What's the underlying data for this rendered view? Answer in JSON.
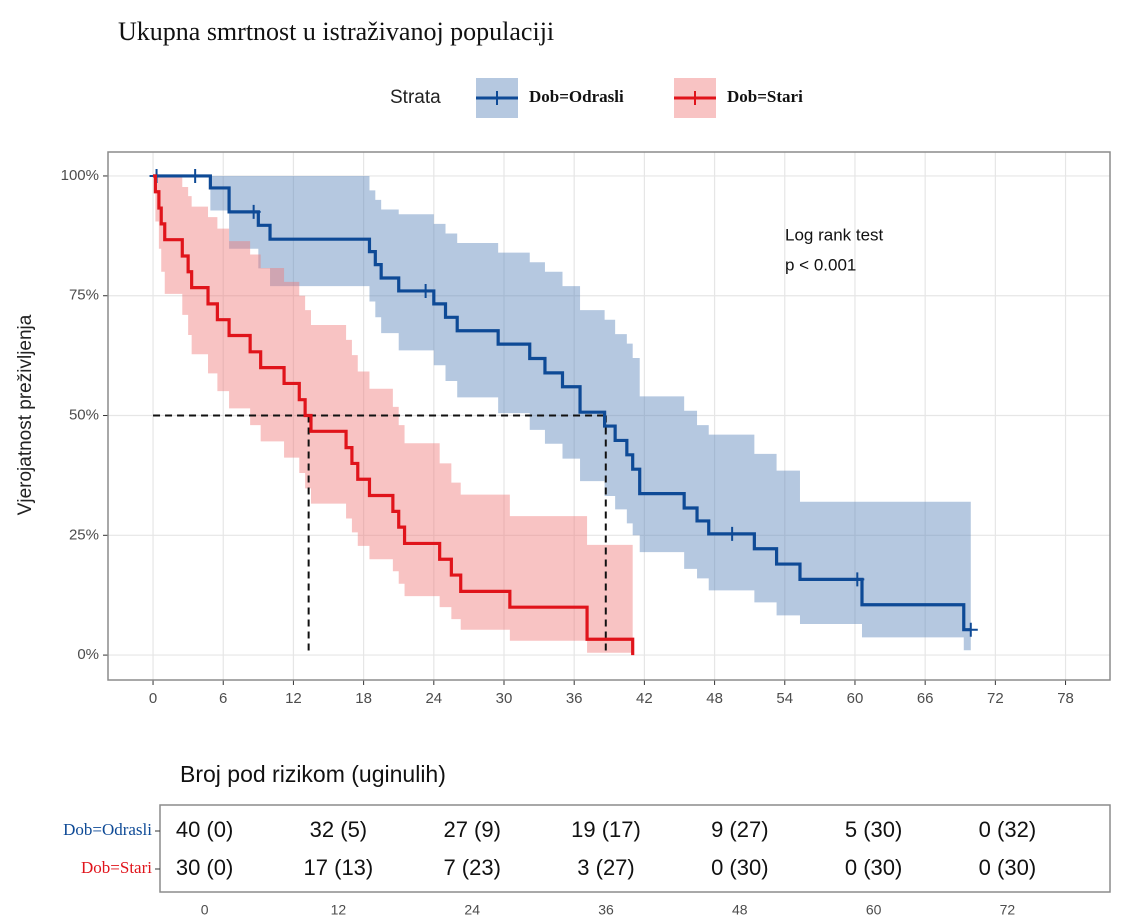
{
  "chart_data": {
    "type": "kaplan-meier",
    "title": "Ukupna smrtnost u istraživanoj populaciji",
    "y_label": "Vjerojatnost preživljenja",
    "legend_title": "Strata",
    "xlim": [
      -3.85,
      81.8
    ],
    "ylim": [
      -5.2,
      105
    ],
    "xticks": [
      0,
      6,
      12,
      18,
      24,
      30,
      36,
      42,
      48,
      54,
      60,
      66,
      72,
      78
    ],
    "yticks": [
      {
        "value": 0,
        "label": "0%"
      },
      {
        "value": 25,
        "label": "25%"
      },
      {
        "value": 50,
        "label": "50%"
      },
      {
        "value": 75,
        "label": "75%"
      },
      {
        "value": 100,
        "label": "100%"
      }
    ],
    "grid": true,
    "annotation": [
      "Log rank test",
      "p < 0.001"
    ],
    "median_lines": {
      "y": 50,
      "x": [
        13.3,
        38.7
      ]
    },
    "series": [
      {
        "name": "Dob=Odrasli",
        "color": "#0e4a96",
        "band_color": "#5c86ba",
        "x": [
          0,
          4.9,
          6.5,
          9,
          10,
          18.5,
          19,
          19.5,
          21,
          24,
          25,
          26,
          29.5,
          32.2,
          33.5,
          35,
          36.5,
          38.6,
          39.5,
          40.5,
          41,
          41.6,
          45.4,
          46.5,
          47.5,
          51.4,
          53.3,
          55.3,
          60.6,
          69.3,
          69.9
        ],
        "values": [
          100,
          97.5,
          92.5,
          89.7,
          86.8,
          84.2,
          81.5,
          78.7,
          76,
          73.3,
          70.5,
          67.7,
          64.9,
          61.9,
          58.9,
          56,
          50.7,
          47.8,
          44.8,
          41.8,
          38.8,
          33.7,
          30.7,
          28,
          25.3,
          22.2,
          19,
          15.8,
          10.5,
          5.3,
          5.3
        ],
        "lower": [
          100,
          92.8,
          84.8,
          80.7,
          77,
          73.8,
          70.5,
          67.2,
          63.6,
          60.5,
          57.2,
          53.8,
          50.5,
          47,
          44.1,
          41,
          36.3,
          33.2,
          30.4,
          27.5,
          25,
          21.5,
          18,
          16,
          13.5,
          11,
          8.3,
          6.5,
          3.7,
          1,
          1
        ],
        "upper": [
          100,
          100,
          100,
          100,
          100,
          97,
          95,
          93,
          92,
          90,
          88,
          86,
          84,
          82,
          80,
          77,
          72,
          70,
          67,
          65,
          62,
          54,
          51,
          48,
          46,
          42,
          38.5,
          32,
          32,
          32,
          32
        ],
        "censor_x": [
          0.3,
          3.6,
          8.6,
          23.3,
          49.5,
          60.2,
          69.9
        ],
        "censor_y": [
          100,
          100,
          92.5,
          76,
          25.3,
          15.8,
          5.3
        ]
      },
      {
        "name": "Dob=Stari",
        "color": "#e0141b",
        "band_color": "#f07a7a",
        "x": [
          0,
          0.2,
          0.5,
          0.7,
          1,
          2.5,
          3,
          3.3,
          4.7,
          5.5,
          6.5,
          8.3,
          9.2,
          11.2,
          12.5,
          13,
          13.5,
          16.5,
          17,
          17.5,
          18.5,
          20.5,
          21,
          21.5,
          24.5,
          25.5,
          26.3,
          30.5,
          37.1,
          41
        ],
        "values": [
          100,
          96.7,
          93.3,
          90,
          86.7,
          83.3,
          80,
          76.7,
          73.3,
          70,
          66.7,
          63.3,
          60,
          56.7,
          53.3,
          50,
          46.7,
          43.3,
          40,
          36.7,
          33.3,
          30,
          26.7,
          23.3,
          20,
          16.7,
          13.3,
          10,
          3.3,
          0
        ],
        "lower": [
          100,
          90.5,
          84.8,
          80,
          75.4,
          71,
          66.8,
          62.8,
          58.8,
          55.1,
          51.5,
          48,
          44.6,
          41.2,
          38,
          34.8,
          31.6,
          28.5,
          25.6,
          22.8,
          20,
          17.5,
          14.9,
          12.3,
          10,
          7.5,
          5.3,
          3,
          0.5,
          0
        ],
        "upper": [
          100,
          100,
          100,
          100,
          100,
          97.7,
          95.8,
          93.6,
          91.4,
          89,
          86.4,
          83.6,
          80.8,
          77.9,
          75,
          72,
          68.9,
          65.8,
          62.6,
          59.2,
          55.6,
          51.8,
          48,
          44.2,
          40,
          36,
          33.5,
          29,
          23,
          0
        ]
      }
    ],
    "risk_table": {
      "title": "Broj pod rizikom (uginulih)",
      "xlim": [
        -4,
        81.2
      ],
      "xticks": [
        0,
        12,
        24,
        36,
        48,
        60,
        72
      ],
      "rows": [
        {
          "name": "Dob=Odrasli",
          "cells": [
            "40 (0)",
            "32 (5)",
            "27 (9)",
            "19 (17)",
            "9 (27)",
            "5 (30)",
            "0 (32)"
          ]
        },
        {
          "name": "Dob=Stari",
          "cells": [
            "30 (0)",
            "17 (13)",
            "7 (23)",
            "3 (27)",
            "0 (30)",
            "0 (30)",
            "0 (30)"
          ]
        }
      ]
    }
  }
}
